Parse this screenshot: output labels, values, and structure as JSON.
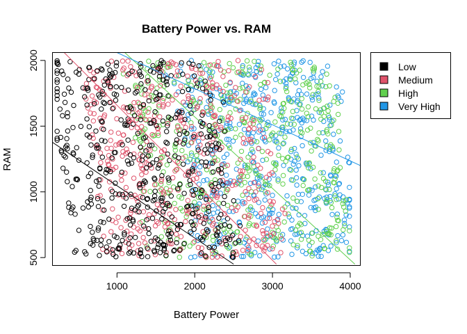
{
  "chart_data": {
    "type": "scatter",
    "title": "Battery Power vs. RAM",
    "xlabel": "Battery Power",
    "ylabel": "RAM",
    "xlim": [
      170,
      4130
    ],
    "ylim": [
      440,
      2060
    ],
    "xticks": [
      1000,
      2000,
      3000,
      4000
    ],
    "yticks": [
      500,
      1000,
      1500,
      2000
    ],
    "legend_position": "outside-right",
    "marker": "open-circle",
    "points_per_class_drawn": 500,
    "series": [
      {
        "name": "Low",
        "color": "#000000",
        "approx_region": {
          "battery_power": [
            250,
            2400
          ],
          "ram": [
            500,
            2000
          ]
        },
        "fit_line": {
          "x": [
            170,
            2500
          ],
          "y": [
            1377,
            450
          ]
        }
      },
      {
        "name": "Medium",
        "color": "#DF536B",
        "approx_region": {
          "battery_power": [
            700,
            3000
          ],
          "ram": [
            500,
            2000
          ]
        },
        "fit_line": {
          "x": [
            320,
            3050
          ],
          "y": [
            2060,
            450
          ]
        }
      },
      {
        "name": "High",
        "color": "#61D04F",
        "approx_region": {
          "battery_power": [
            1300,
            3900
          ],
          "ram": [
            500,
            2000
          ]
        },
        "fit_line": {
          "x": [
            1100,
            4060
          ],
          "y": [
            2060,
            450
          ]
        }
      },
      {
        "name": "Very High",
        "color": "#2297E6",
        "approx_region": {
          "battery_power": [
            1900,
            4000
          ],
          "ram": [
            500,
            2000
          ]
        },
        "fit_line": {
          "x": [
            1000,
            4130
          ],
          "y": [
            2060,
            1200
          ]
        }
      }
    ]
  }
}
